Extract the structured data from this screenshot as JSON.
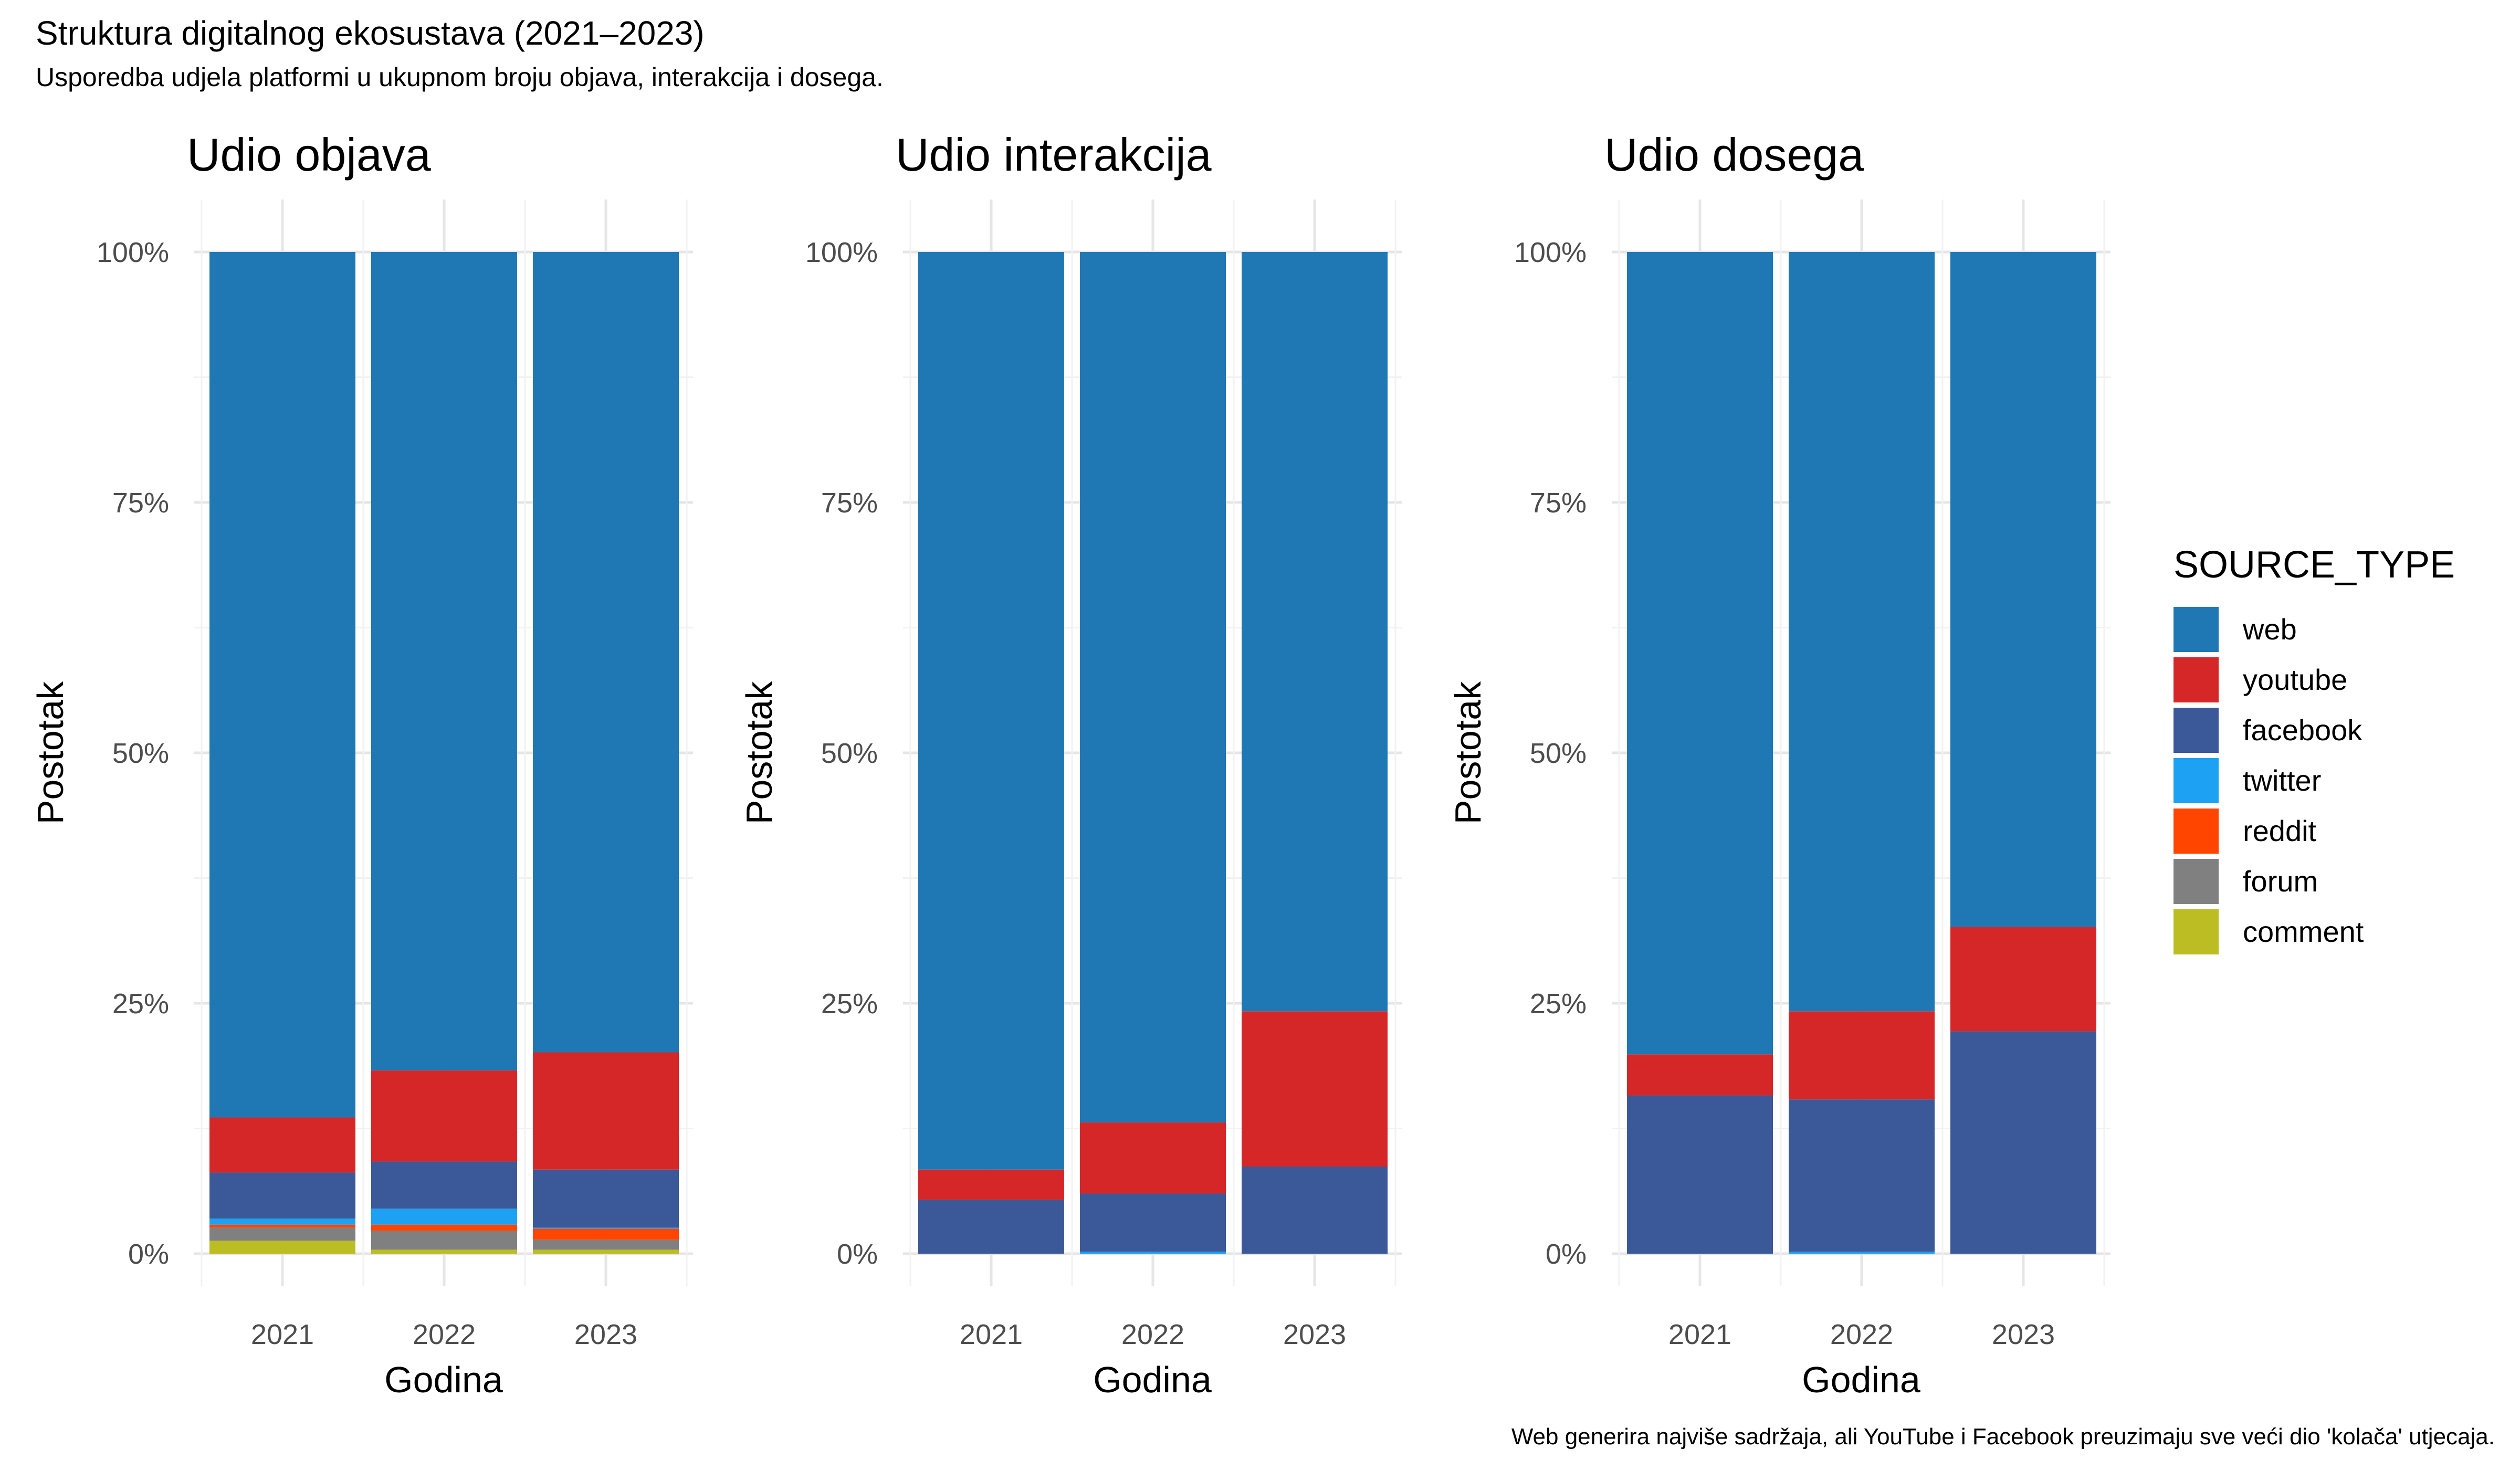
{
  "title": "Struktura digitalnog ekosustava (2021–2023)",
  "subtitle": "Usporedba udjela platformi u ukupnom broju objava, interakcija i dosega.",
  "caption": "Web generira najviše sadržaja, ali YouTube i Facebook preuzimaju sve veći dio 'kolača' utjecaja.",
  "chart_data": [
    {
      "type": "bar",
      "stacked": true,
      "title": "Udio objava",
      "xlabel": "Godina",
      "ylabel": "Postotak",
      "categories": [
        "2021",
        "2022",
        "2023"
      ],
      "ylim": [
        0,
        100
      ],
      "yticks": [
        "0%",
        "25%",
        "50%",
        "75%",
        "100%"
      ],
      "series": [
        {
          "name": "comment",
          "values": [
            1.3,
            0.4,
            0.4
          ]
        },
        {
          "name": "forum",
          "values": [
            1.3,
            1.9,
            1.0
          ]
        },
        {
          "name": "reddit",
          "values": [
            0.3,
            0.6,
            1.1
          ]
        },
        {
          "name": "twitter",
          "values": [
            0.6,
            1.6,
            0.1
          ]
        },
        {
          "name": "facebook",
          "values": [
            4.6,
            4.7,
            5.8
          ]
        },
        {
          "name": "youtube",
          "values": [
            5.5,
            9.1,
            11.7
          ]
        },
        {
          "name": "web",
          "values": [
            86.4,
            81.7,
            79.9
          ]
        }
      ]
    },
    {
      "type": "bar",
      "stacked": true,
      "title": "Udio interakcija",
      "xlabel": "Godina",
      "ylabel": "Postotak",
      "categories": [
        "2021",
        "2022",
        "2023"
      ],
      "ylim": [
        0,
        100
      ],
      "yticks": [
        "0%",
        "25%",
        "50%",
        "75%",
        "100%"
      ],
      "series": [
        {
          "name": "comment",
          "values": [
            0,
            0,
            0
          ]
        },
        {
          "name": "forum",
          "values": [
            0,
            0,
            0
          ]
        },
        {
          "name": "reddit",
          "values": [
            0,
            0,
            0
          ]
        },
        {
          "name": "twitter",
          "values": [
            0,
            0.2,
            0
          ]
        },
        {
          "name": "facebook",
          "values": [
            5.4,
            5.8,
            8.7
          ]
        },
        {
          "name": "youtube",
          "values": [
            3.0,
            7.1,
            15.5
          ]
        },
        {
          "name": "web",
          "values": [
            91.6,
            86.9,
            75.8
          ]
        }
      ]
    },
    {
      "type": "bar",
      "stacked": true,
      "title": "Udio dosega",
      "xlabel": "Godina",
      "ylabel": "Postotak",
      "categories": [
        "2021",
        "2022",
        "2023"
      ],
      "ylim": [
        0,
        100
      ],
      "yticks": [
        "0%",
        "25%",
        "50%",
        "75%",
        "100%"
      ],
      "series": [
        {
          "name": "comment",
          "values": [
            0,
            0,
            0
          ]
        },
        {
          "name": "forum",
          "values": [
            0,
            0,
            0
          ]
        },
        {
          "name": "reddit",
          "values": [
            0,
            0,
            0
          ]
        },
        {
          "name": "twitter",
          "values": [
            0,
            0.2,
            0
          ]
        },
        {
          "name": "facebook",
          "values": [
            15.8,
            15.2,
            22.2
          ]
        },
        {
          "name": "youtube",
          "values": [
            4.1,
            8.8,
            10.4
          ]
        },
        {
          "name": "web",
          "values": [
            80.1,
            75.8,
            67.4
          ]
        }
      ]
    }
  ],
  "legend": {
    "title": "SOURCE_TYPE",
    "placement": "right",
    "items": [
      {
        "name": "web",
        "color": "#1F78B4"
      },
      {
        "name": "youtube",
        "color": "#D62728"
      },
      {
        "name": "facebook",
        "color": "#3B5998"
      },
      {
        "name": "twitter",
        "color": "#1DA1F2"
      },
      {
        "name": "reddit",
        "color": "#FF4500"
      },
      {
        "name": "forum",
        "color": "#808080"
      },
      {
        "name": "comment",
        "color": "#BCBD22"
      }
    ]
  }
}
